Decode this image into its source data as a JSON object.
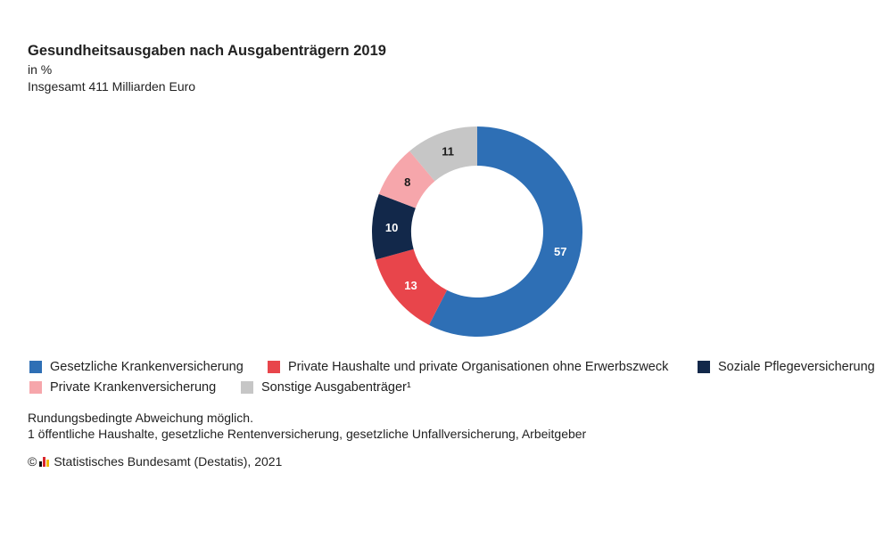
{
  "header": {
    "title": "Gesundheitsausgaben nach Ausgabenträgern 2019",
    "unit": "in %",
    "total": "Insgesamt 411 Milliarden Euro"
  },
  "chart_data": {
    "type": "pie",
    "subtype": "donut",
    "title": "Gesundheitsausgaben nach Ausgabenträgern 2019",
    "unit": "in %",
    "slices": [
      {
        "label": "Gesetzliche Krankenversicherung",
        "value": 57,
        "color": "#2e6fb5",
        "text_color": "#ffffff"
      },
      {
        "label": "Private Haushalte und private Organisationen ohne Erwerbszweck",
        "value": 13,
        "color": "#e8454b",
        "text_color": "#ffffff"
      },
      {
        "label": "Soziale Pflegeversicherung",
        "value": 10,
        "color": "#12284a",
        "text_color": "#ffffff"
      },
      {
        "label": "Private Krankenversicherung",
        "value": 8,
        "color": "#f6a6ab",
        "text_color": "#1a1a1a"
      },
      {
        "label": "Sonstige Ausgabenträger¹",
        "value": 11,
        "color": "#c6c6c6",
        "text_color": "#1a1a1a"
      }
    ],
    "legend_position": "bottom"
  },
  "notes": {
    "rounding": "Rundungsbedingte Abweichung möglich.",
    "footnote": "1 öffentliche Haushalte, gesetzliche Rentenversicherung, gesetzliche Unfallversicherung, Arbeitgeber"
  },
  "source": {
    "copyright": "©",
    "text": "Statistisches Bundesamt (Destatis), 2021"
  }
}
